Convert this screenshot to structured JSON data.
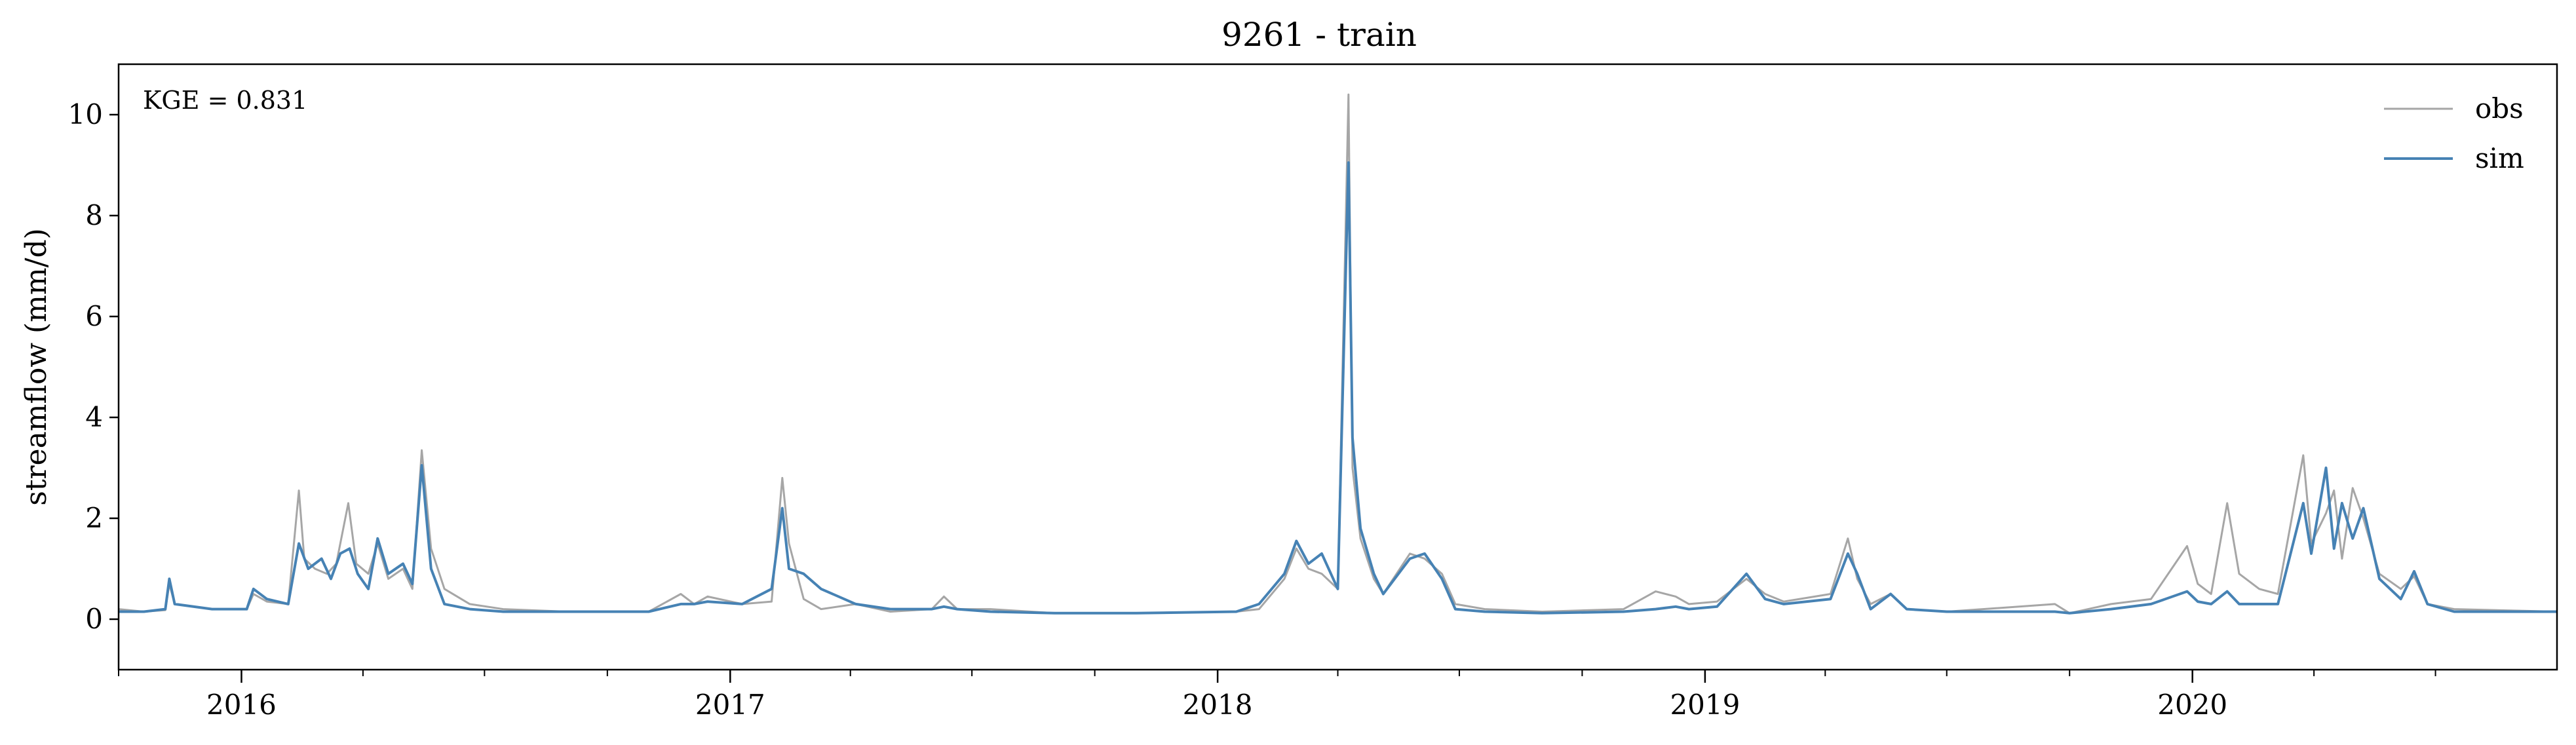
{
  "chart_data": {
    "type": "line",
    "title": "9261 - train",
    "xlabel": "",
    "ylabel": "streamflow (mm/d)",
    "annotation": "KGE = 0.831",
    "xlim": [
      "2015-10-01",
      "2020-09-30"
    ],
    "ylim": [
      -1,
      11
    ],
    "y_ticks": [
      "0",
      "2",
      "4",
      "6",
      "8",
      "10"
    ],
    "x_tick_labels": [
      "2016",
      "2017",
      "2018",
      "2019",
      "2020"
    ],
    "grid": false,
    "legend_position": "top-right",
    "colors": {
      "obs": "#a6a6a6",
      "sim": "#4682b4"
    },
    "series": [
      {
        "name": "obs",
        "color": "#a6a6a6",
        "points": [
          [
            "2015-10-01",
            0.2
          ],
          [
            "2015-10-20",
            0.15
          ],
          [
            "2015-11-05",
            0.18
          ],
          [
            "2015-11-08",
            0.7
          ],
          [
            "2015-11-12",
            0.3
          ],
          [
            "2015-12-10",
            0.2
          ],
          [
            "2016-01-05",
            0.2
          ],
          [
            "2016-01-10",
            0.5
          ],
          [
            "2016-01-20",
            0.35
          ],
          [
            "2016-02-05",
            0.3
          ],
          [
            "2016-02-13",
            2.55
          ],
          [
            "2016-02-17",
            1.2
          ],
          [
            "2016-02-25",
            1.0
          ],
          [
            "2016-03-05",
            0.9
          ],
          [
            "2016-03-12",
            1.1
          ],
          [
            "2016-03-21",
            2.3
          ],
          [
            "2016-03-27",
            1.1
          ],
          [
            "2016-04-05",
            0.9
          ],
          [
            "2016-04-12",
            1.5
          ],
          [
            "2016-04-20",
            0.8
          ],
          [
            "2016-05-01",
            1.0
          ],
          [
            "2016-05-08",
            0.6
          ],
          [
            "2016-05-15",
            3.35
          ],
          [
            "2016-05-22",
            1.4
          ],
          [
            "2016-06-01",
            0.6
          ],
          [
            "2016-06-20",
            0.3
          ],
          [
            "2016-07-15",
            0.2
          ],
          [
            "2016-09-01",
            0.15
          ],
          [
            "2016-11-01",
            0.15
          ],
          [
            "2016-11-25",
            0.5
          ],
          [
            "2016-12-05",
            0.3
          ],
          [
            "2016-12-15",
            0.45
          ],
          [
            "2017-01-10",
            0.3
          ],
          [
            "2017-02-01",
            0.35
          ],
          [
            "2017-02-09",
            2.8
          ],
          [
            "2017-02-14",
            1.5
          ],
          [
            "2017-02-25",
            0.4
          ],
          [
            "2017-03-10",
            0.2
          ],
          [
            "2017-04-05",
            0.3
          ],
          [
            "2017-05-01",
            0.15
          ],
          [
            "2017-06-01",
            0.2
          ],
          [
            "2017-06-10",
            0.45
          ],
          [
            "2017-06-20",
            0.2
          ],
          [
            "2017-07-15",
            0.2
          ],
          [
            "2017-09-01",
            0.12
          ],
          [
            "2017-11-01",
            0.12
          ],
          [
            "2018-01-15",
            0.15
          ],
          [
            "2018-02-01",
            0.2
          ],
          [
            "2018-02-20",
            0.8
          ],
          [
            "2018-03-01",
            1.4
          ],
          [
            "2018-03-10",
            1.0
          ],
          [
            "2018-03-20",
            0.9
          ],
          [
            "2018-04-01",
            0.6
          ],
          [
            "2018-04-09",
            10.4
          ],
          [
            "2018-04-12",
            3.0
          ],
          [
            "2018-04-18",
            1.6
          ],
          [
            "2018-04-28",
            0.8
          ],
          [
            "2018-05-05",
            0.5
          ],
          [
            "2018-05-25",
            1.3
          ],
          [
            "2018-06-05",
            1.2
          ],
          [
            "2018-06-18",
            0.9
          ],
          [
            "2018-06-28",
            0.3
          ],
          [
            "2018-07-20",
            0.2
          ],
          [
            "2018-09-01",
            0.15
          ],
          [
            "2018-11-01",
            0.2
          ],
          [
            "2018-11-25",
            0.55
          ],
          [
            "2018-12-10",
            0.45
          ],
          [
            "2018-12-20",
            0.3
          ],
          [
            "2019-01-10",
            0.35
          ],
          [
            "2019-02-01",
            0.8
          ],
          [
            "2019-02-15",
            0.5
          ],
          [
            "2019-03-01",
            0.35
          ],
          [
            "2019-04-05",
            0.5
          ],
          [
            "2019-04-18",
            1.6
          ],
          [
            "2019-04-25",
            0.8
          ],
          [
            "2019-05-05",
            0.3
          ],
          [
            "2019-05-20",
            0.5
          ],
          [
            "2019-06-01",
            0.2
          ],
          [
            "2019-07-01",
            0.15
          ],
          [
            "2019-09-20",
            0.3
          ],
          [
            "2019-10-01",
            0.12
          ],
          [
            "2019-11-01",
            0.3
          ],
          [
            "2019-12-01",
            0.4
          ],
          [
            "2019-12-28",
            1.45
          ],
          [
            "2020-01-05",
            0.7
          ],
          [
            "2020-01-15",
            0.5
          ],
          [
            "2020-01-27",
            2.3
          ],
          [
            "2020-02-05",
            0.9
          ],
          [
            "2020-02-20",
            0.6
          ],
          [
            "2020-03-05",
            0.5
          ],
          [
            "2020-03-24",
            3.25
          ],
          [
            "2020-03-30",
            1.5
          ],
          [
            "2020-04-10",
            2.1
          ],
          [
            "2020-04-16",
            2.55
          ],
          [
            "2020-04-22",
            1.2
          ],
          [
            "2020-04-30",
            2.6
          ],
          [
            "2020-05-08",
            2.0
          ],
          [
            "2020-05-20",
            0.9
          ],
          [
            "2020-06-05",
            0.6
          ],
          [
            "2020-06-15",
            0.85
          ],
          [
            "2020-06-25",
            0.3
          ],
          [
            "2020-07-15",
            0.2
          ],
          [
            "2020-09-30",
            0.15
          ]
        ]
      },
      {
        "name": "sim",
        "color": "#4682b4",
        "points": [
          [
            "2015-10-01",
            0.15
          ],
          [
            "2015-10-20",
            0.15
          ],
          [
            "2015-11-05",
            0.2
          ],
          [
            "2015-11-08",
            0.8
          ],
          [
            "2015-11-12",
            0.3
          ],
          [
            "2015-12-10",
            0.2
          ],
          [
            "2016-01-05",
            0.2
          ],
          [
            "2016-01-10",
            0.6
          ],
          [
            "2016-01-20",
            0.4
          ],
          [
            "2016-02-05",
            0.3
          ],
          [
            "2016-02-13",
            1.5
          ],
          [
            "2016-02-20",
            1.0
          ],
          [
            "2016-03-01",
            1.2
          ],
          [
            "2016-03-08",
            0.8
          ],
          [
            "2016-03-15",
            1.3
          ],
          [
            "2016-03-22",
            1.4
          ],
          [
            "2016-03-28",
            0.9
          ],
          [
            "2016-04-05",
            0.6
          ],
          [
            "2016-04-12",
            1.6
          ],
          [
            "2016-04-20",
            0.9
          ],
          [
            "2016-05-01",
            1.1
          ],
          [
            "2016-05-08",
            0.7
          ],
          [
            "2016-05-15",
            3.05
          ],
          [
            "2016-05-22",
            1.0
          ],
          [
            "2016-06-01",
            0.3
          ],
          [
            "2016-06-20",
            0.2
          ],
          [
            "2016-07-15",
            0.15
          ],
          [
            "2016-09-01",
            0.15
          ],
          [
            "2016-11-01",
            0.15
          ],
          [
            "2016-11-25",
            0.3
          ],
          [
            "2016-12-05",
            0.3
          ],
          [
            "2016-12-15",
            0.35
          ],
          [
            "2017-01-10",
            0.3
          ],
          [
            "2017-02-01",
            0.6
          ],
          [
            "2017-02-09",
            2.2
          ],
          [
            "2017-02-14",
            1.0
          ],
          [
            "2017-02-25",
            0.9
          ],
          [
            "2017-03-10",
            0.6
          ],
          [
            "2017-04-05",
            0.3
          ],
          [
            "2017-05-01",
            0.2
          ],
          [
            "2017-06-01",
            0.2
          ],
          [
            "2017-06-10",
            0.25
          ],
          [
            "2017-06-20",
            0.2
          ],
          [
            "2017-07-15",
            0.15
          ],
          [
            "2017-09-01",
            0.12
          ],
          [
            "2017-11-01",
            0.12
          ],
          [
            "2018-01-15",
            0.15
          ],
          [
            "2018-02-01",
            0.3
          ],
          [
            "2018-02-20",
            0.9
          ],
          [
            "2018-03-01",
            1.55
          ],
          [
            "2018-03-10",
            1.1
          ],
          [
            "2018-03-20",
            1.3
          ],
          [
            "2018-04-01",
            0.6
          ],
          [
            "2018-04-09",
            9.05
          ],
          [
            "2018-04-12",
            3.6
          ],
          [
            "2018-04-18",
            1.8
          ],
          [
            "2018-04-28",
            0.9
          ],
          [
            "2018-05-05",
            0.5
          ],
          [
            "2018-05-25",
            1.2
          ],
          [
            "2018-06-05",
            1.3
          ],
          [
            "2018-06-18",
            0.8
          ],
          [
            "2018-06-28",
            0.2
          ],
          [
            "2018-07-20",
            0.15
          ],
          [
            "2018-09-01",
            0.12
          ],
          [
            "2018-11-01",
            0.15
          ],
          [
            "2018-11-25",
            0.2
          ],
          [
            "2018-12-10",
            0.25
          ],
          [
            "2018-12-20",
            0.2
          ],
          [
            "2019-01-10",
            0.25
          ],
          [
            "2019-02-01",
            0.9
          ],
          [
            "2019-02-15",
            0.4
          ],
          [
            "2019-03-01",
            0.3
          ],
          [
            "2019-04-05",
            0.4
          ],
          [
            "2019-04-18",
            1.3
          ],
          [
            "2019-04-25",
            0.9
          ],
          [
            "2019-05-05",
            0.2
          ],
          [
            "2019-05-20",
            0.5
          ],
          [
            "2019-06-01",
            0.2
          ],
          [
            "2019-07-01",
            0.15
          ],
          [
            "2019-09-20",
            0.15
          ],
          [
            "2019-10-01",
            0.12
          ],
          [
            "2019-11-01",
            0.2
          ],
          [
            "2019-12-01",
            0.3
          ],
          [
            "2019-12-28",
            0.55
          ],
          [
            "2020-01-05",
            0.35
          ],
          [
            "2020-01-15",
            0.3
          ],
          [
            "2020-01-27",
            0.55
          ],
          [
            "2020-02-05",
            0.3
          ],
          [
            "2020-02-20",
            0.3
          ],
          [
            "2020-03-05",
            0.3
          ],
          [
            "2020-03-24",
            2.3
          ],
          [
            "2020-03-30",
            1.3
          ],
          [
            "2020-04-10",
            3.0
          ],
          [
            "2020-04-16",
            1.4
          ],
          [
            "2020-04-22",
            2.3
          ],
          [
            "2020-04-30",
            1.6
          ],
          [
            "2020-05-08",
            2.2
          ],
          [
            "2020-05-20",
            0.8
          ],
          [
            "2020-06-05",
            0.4
          ],
          [
            "2020-06-15",
            0.95
          ],
          [
            "2020-06-25",
            0.3
          ],
          [
            "2020-07-15",
            0.15
          ],
          [
            "2020-09-30",
            0.15
          ]
        ]
      }
    ]
  }
}
